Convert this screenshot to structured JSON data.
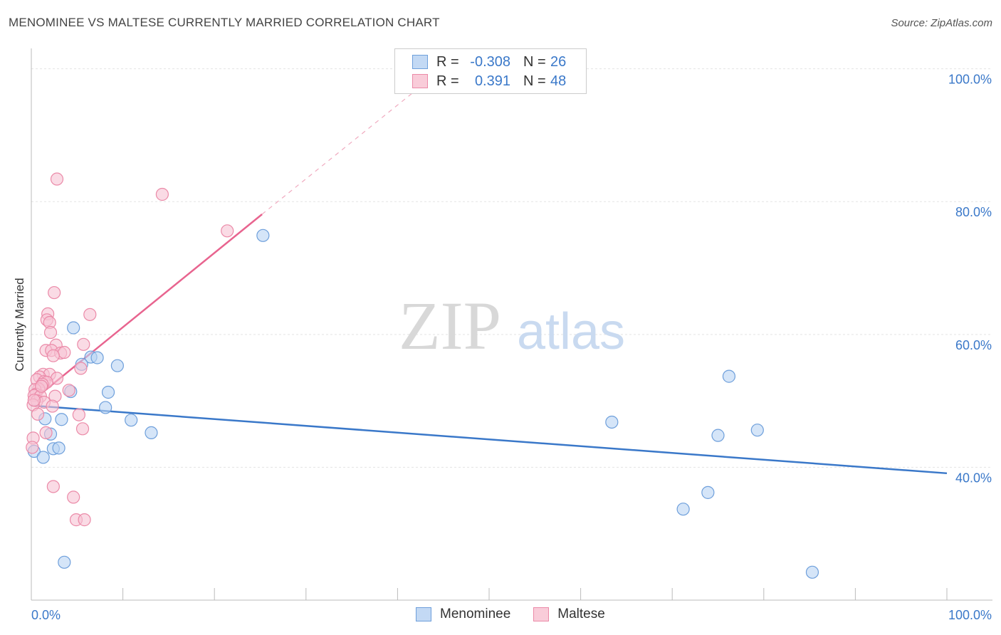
{
  "header": {
    "title": "MENOMINEE VS MALTESE CURRENTLY MARRIED CORRELATION CHART",
    "source": "Source: ZipAtlas.com"
  },
  "colors": {
    "menominee": "#3a78c9",
    "menominee_fill": "#b9d3f3",
    "maltese": "#e8648f",
    "maltese_fill": "#f7c3d3",
    "axis_label": "#3a78c9"
  },
  "legend": {
    "rows": [
      {
        "r_label": "R =",
        "r_value": "-0.308",
        "n_label": "N =",
        "n_value": "26"
      },
      {
        "r_label": "R =",
        "r_value": "0.391",
        "n_label": "N =",
        "n_value": "48"
      }
    ]
  },
  "bottom_legend": {
    "series1": "Menominee",
    "series2": "Maltese"
  },
  "watermark": {
    "zip": "ZIP",
    "atlas": "atlas"
  },
  "chart_data": {
    "type": "scatter",
    "title": "MENOMINEE VS MALTESE CURRENTLY MARRIED CORRELATION CHART",
    "xlabel": "",
    "ylabel": "Currently Married",
    "xlim": [
      0,
      100
    ],
    "ylim": [
      20,
      102
    ],
    "x_tick_labels": {
      "left": "0.0%",
      "right": "100.0%"
    },
    "y_ticks": [
      {
        "value": 40,
        "label": "40.0%"
      },
      {
        "value": 60,
        "label": "60.0%"
      },
      {
        "value": 80,
        "label": "80.0%"
      },
      {
        "value": 100,
        "label": "100.0%"
      }
    ],
    "grid": true,
    "legend_position": "top-center",
    "series": [
      {
        "name": "Menominee",
        "r": -0.308,
        "n": 26,
        "trend": {
          "x": [
            0,
            100
          ],
          "y": [
            49.3,
            39.1
          ]
        },
        "points": [
          [
            4.6,
            61.0
          ],
          [
            6.5,
            56.6
          ],
          [
            7.2,
            56.5
          ],
          [
            9.4,
            55.3
          ],
          [
            5.5,
            55.5
          ],
          [
            4.3,
            51.4
          ],
          [
            8.4,
            51.3
          ],
          [
            8.1,
            49.0
          ],
          [
            1.5,
            47.3
          ],
          [
            3.3,
            47.2
          ],
          [
            10.9,
            47.1
          ],
          [
            2.1,
            45.0
          ],
          [
            13.1,
            45.2
          ],
          [
            2.4,
            42.8
          ],
          [
            3.0,
            42.9
          ],
          [
            0.3,
            42.4
          ],
          [
            1.3,
            41.5
          ],
          [
            25.3,
            74.9
          ],
          [
            63.4,
            46.8
          ],
          [
            76.2,
            53.7
          ],
          [
            75.0,
            44.8
          ],
          [
            79.3,
            45.6
          ],
          [
            73.9,
            36.2
          ],
          [
            71.2,
            33.7
          ],
          [
            3.6,
            25.7
          ],
          [
            85.3,
            24.2
          ]
        ]
      },
      {
        "name": "Maltese",
        "r": 0.391,
        "n": 48,
        "trend": {
          "x": [
            0,
            25.2
          ],
          "y": [
            49.9,
            78.1
          ],
          "dashed_to": [
            45,
            100.1
          ]
        },
        "points": [
          [
            2.8,
            83.4
          ],
          [
            14.3,
            81.1
          ],
          [
            21.4,
            75.6
          ],
          [
            2.5,
            66.3
          ],
          [
            1.8,
            63.1
          ],
          [
            6.4,
            63.0
          ],
          [
            1.7,
            62.2
          ],
          [
            2.0,
            61.8
          ],
          [
            2.1,
            60.3
          ],
          [
            2.7,
            58.4
          ],
          [
            5.7,
            58.5
          ],
          [
            1.6,
            57.6
          ],
          [
            2.2,
            57.6
          ],
          [
            3.2,
            57.2
          ],
          [
            3.6,
            57.3
          ],
          [
            2.4,
            56.8
          ],
          [
            5.4,
            54.9
          ],
          [
            1.3,
            54.0
          ],
          [
            2.0,
            54.0
          ],
          [
            0.9,
            53.6
          ],
          [
            2.8,
            53.4
          ],
          [
            0.6,
            53.2
          ],
          [
            1.4,
            52.9
          ],
          [
            1.7,
            52.8
          ],
          [
            1.2,
            52.5
          ],
          [
            0.8,
            51.8
          ],
          [
            0.4,
            51.7
          ],
          [
            4.1,
            51.6
          ],
          [
            0.5,
            51.0
          ],
          [
            0.3,
            50.8
          ],
          [
            1.0,
            50.7
          ],
          [
            2.6,
            50.7
          ],
          [
            0.6,
            50.0
          ],
          [
            1.4,
            49.8
          ],
          [
            0.2,
            49.4
          ],
          [
            2.3,
            49.2
          ],
          [
            0.7,
            48.0
          ],
          [
            5.2,
            47.9
          ],
          [
            1.6,
            45.2
          ],
          [
            5.6,
            45.8
          ],
          [
            0.2,
            44.4
          ],
          [
            0.1,
            43.0
          ],
          [
            2.4,
            37.1
          ],
          [
            4.6,
            35.5
          ],
          [
            4.9,
            32.1
          ],
          [
            5.8,
            32.1
          ],
          [
            0.3,
            50.1
          ],
          [
            1.1,
            52.2
          ]
        ]
      }
    ]
  }
}
